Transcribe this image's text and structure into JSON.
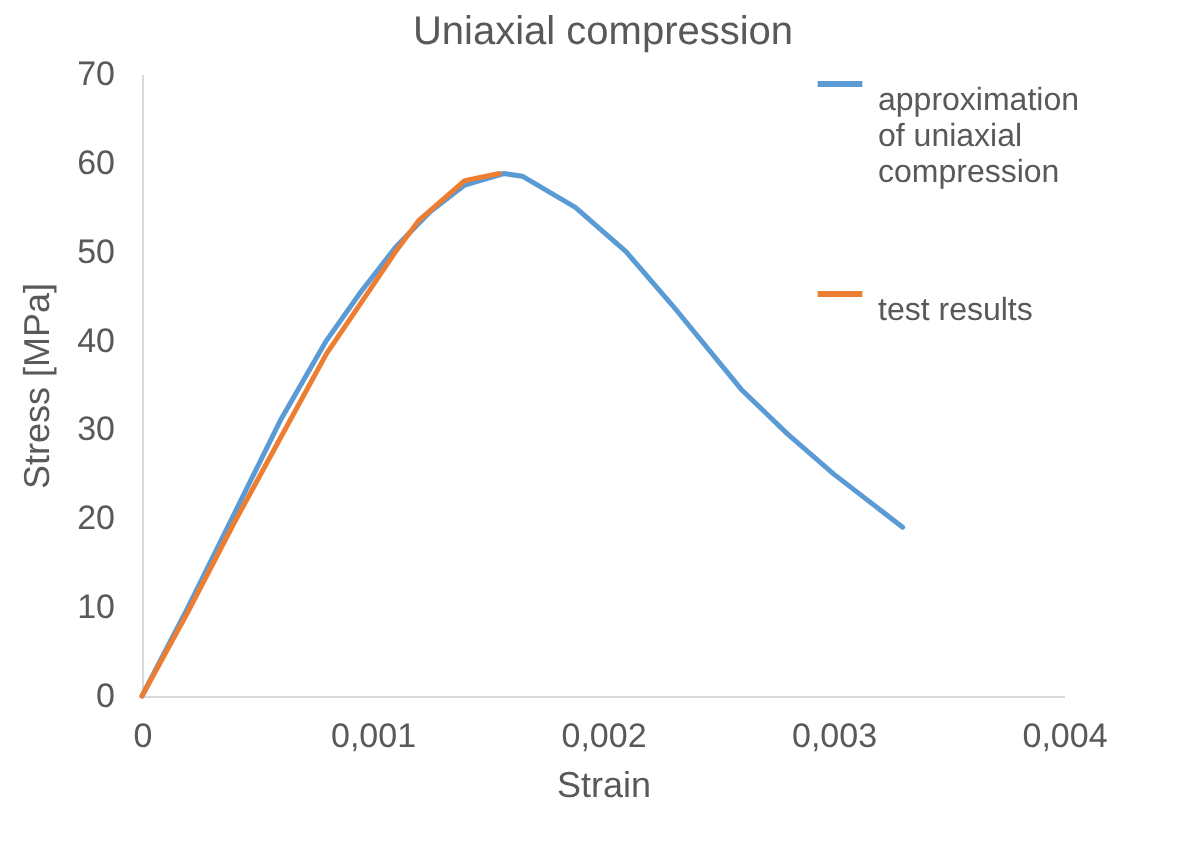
{
  "chart_data": {
    "type": "line",
    "title": "Uniaxial compression",
    "xlabel": "Strain",
    "ylabel": "Stress [MPa]",
    "xlim": [
      0,
      0.004
    ],
    "xticks": [
      0,
      {
        "value": 0.001,
        "label": "0,001"
      },
      {
        "value": 0.002,
        "label": "0,002"
      },
      {
        "value": 0.003,
        "label": "0,003"
      },
      {
        "value": 0.004,
        "label": "0,004"
      }
    ],
    "ylim": [
      0,
      70
    ],
    "yticks": [
      0,
      10,
      20,
      30,
      40,
      50,
      60,
      70
    ],
    "grid": false,
    "legend": "top right",
    "marker": "none",
    "line_style": "solid",
    "series": [
      {
        "name": "approximation of uniaxial compression",
        "color": "#5b9bd5",
        "x": [
          0,
          0.0002,
          0.0004,
          0.0006,
          0.0008,
          0.00095,
          0.0011,
          0.00125,
          0.0014,
          0.00157,
          0.00165,
          0.00188,
          0.0021,
          0.0023,
          0.0026,
          0.0028,
          0.003,
          0.0032,
          0.0033
        ],
        "values": [
          0,
          10,
          20.5,
          31,
          40,
          45.5,
          50.5,
          54.5,
          57.5,
          58.8,
          58.5,
          55,
          50,
          44,
          34.5,
          29.5,
          25,
          21,
          19
        ]
      },
      {
        "name": "test results",
        "color": "#ed7d31",
        "x": [
          0,
          0.0002,
          0.0004,
          0.0006,
          0.0008,
          0.00097,
          0.0011,
          0.0012,
          0.0014,
          0.00155
        ],
        "values": [
          0,
          9.5,
          19.5,
          29,
          38.5,
          45,
          50,
          53.5,
          58,
          58.8
        ]
      }
    ]
  }
}
